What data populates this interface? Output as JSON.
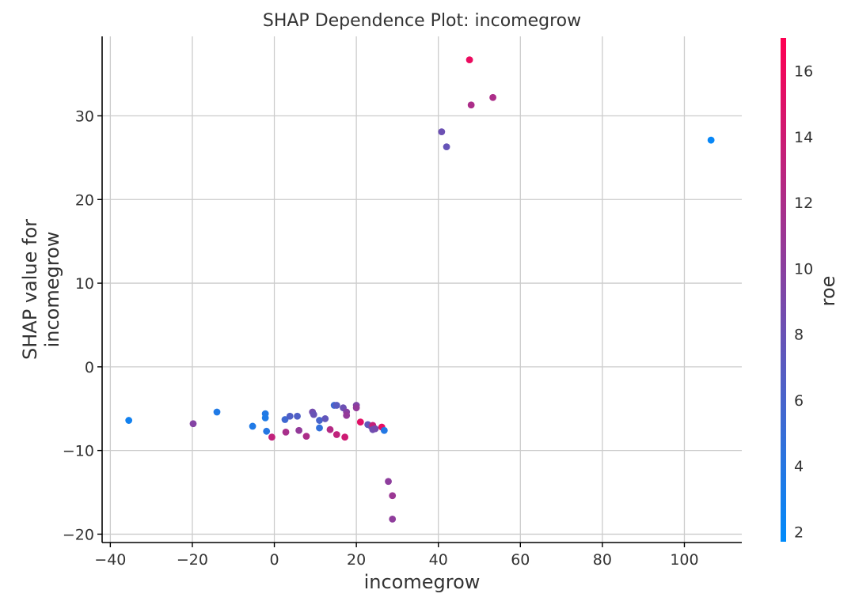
{
  "chart_data": {
    "type": "scatter",
    "title": "SHAP Dependence Plot: incomegrow",
    "xlabel": "incomegrow",
    "ylabel_lines": [
      "SHAP value for",
      "incomegrow"
    ],
    "colorbar_label": "roe",
    "xlim": [
      -42,
      114
    ],
    "ylim": [
      -21,
      39.5
    ],
    "xticks": [
      -40,
      -20,
      0,
      20,
      40,
      60,
      80,
      100
    ],
    "yticks": [
      -20,
      -10,
      0,
      10,
      20,
      30
    ],
    "colorbar_range": [
      1.7,
      17
    ],
    "colorbar_ticks": [
      2,
      4,
      6,
      8,
      10,
      12,
      14,
      16
    ],
    "colormap": [
      "#008bfb",
      "#ff0052"
    ],
    "points": [
      {
        "x": -35.5,
        "y": -6.4,
        "c": 2.8
      },
      {
        "x": -19.8,
        "y": -6.8,
        "c": 9.6
      },
      {
        "x": -14.0,
        "y": -5.4,
        "c": 3.6
      },
      {
        "x": -5.3,
        "y": -7.1,
        "c": 3.6
      },
      {
        "x": -2.2,
        "y": -5.6,
        "c": 3.7
      },
      {
        "x": -2.2,
        "y": -6.1,
        "c": 3.5
      },
      {
        "x": -1.9,
        "y": -7.7,
        "c": 3.9
      },
      {
        "x": -0.6,
        "y": -8.4,
        "c": 13.3
      },
      {
        "x": 2.6,
        "y": -6.3,
        "c": 5.5
      },
      {
        "x": 2.8,
        "y": -7.8,
        "c": 11.8
      },
      {
        "x": 3.8,
        "y": -5.9,
        "c": 6.5
      },
      {
        "x": 5.6,
        "y": -5.9,
        "c": 6.5
      },
      {
        "x": 6.0,
        "y": -7.6,
        "c": 10.5
      },
      {
        "x": 7.8,
        "y": -8.3,
        "c": 12.0
      },
      {
        "x": 9.3,
        "y": -5.4,
        "c": 8.6
      },
      {
        "x": 9.6,
        "y": -5.7,
        "c": 8.0
      },
      {
        "x": 11.0,
        "y": -7.3,
        "c": 4.7
      },
      {
        "x": 11.0,
        "y": -6.4,
        "c": 6.0
      },
      {
        "x": 12.4,
        "y": -6.2,
        "c": 7.5
      },
      {
        "x": 13.6,
        "y": -7.5,
        "c": 12.5
      },
      {
        "x": 14.6,
        "y": -4.6,
        "c": 5.5
      },
      {
        "x": 15.2,
        "y": -4.6,
        "c": 7.0
      },
      {
        "x": 15.2,
        "y": -8.1,
        "c": 13.2
      },
      {
        "x": 16.8,
        "y": -4.9,
        "c": 8.2
      },
      {
        "x": 17.2,
        "y": -8.4,
        "c": 14.0
      },
      {
        "x": 17.6,
        "y": -5.4,
        "c": 9.8
      },
      {
        "x": 17.6,
        "y": -5.8,
        "c": 10.6
      },
      {
        "x": 20.0,
        "y": -4.6,
        "c": 9.3
      },
      {
        "x": 20.0,
        "y": -4.9,
        "c": 10.6
      },
      {
        "x": 21.0,
        "y": -6.6,
        "c": 15.2
      },
      {
        "x": 22.8,
        "y": -6.9,
        "c": 7.5
      },
      {
        "x": 23.6,
        "y": -7.1,
        "c": 8.3
      },
      {
        "x": 24.0,
        "y": -7.0,
        "c": 13.5
      },
      {
        "x": 24.0,
        "y": -7.5,
        "c": 8.4
      },
      {
        "x": 24.6,
        "y": -7.4,
        "c": 8.8
      },
      {
        "x": 26.2,
        "y": -7.2,
        "c": 15.5
      },
      {
        "x": 26.8,
        "y": -7.6,
        "c": 3.8
      },
      {
        "x": 27.8,
        "y": -13.7,
        "c": 10.2
      },
      {
        "x": 28.8,
        "y": -15.4,
        "c": 11.0
      },
      {
        "x": 28.8,
        "y": -18.2,
        "c": 10.3
      },
      {
        "x": 40.8,
        "y": 28.1,
        "c": 8.2
      },
      {
        "x": 42.0,
        "y": 26.3,
        "c": 7.8
      },
      {
        "x": 47.6,
        "y": 36.7,
        "c": 15.8
      },
      {
        "x": 48.0,
        "y": 31.3,
        "c": 12.0
      },
      {
        "x": 53.3,
        "y": 32.2,
        "c": 12.0
      },
      {
        "x": 106.5,
        "y": 27.1,
        "c": 2.1
      }
    ]
  }
}
